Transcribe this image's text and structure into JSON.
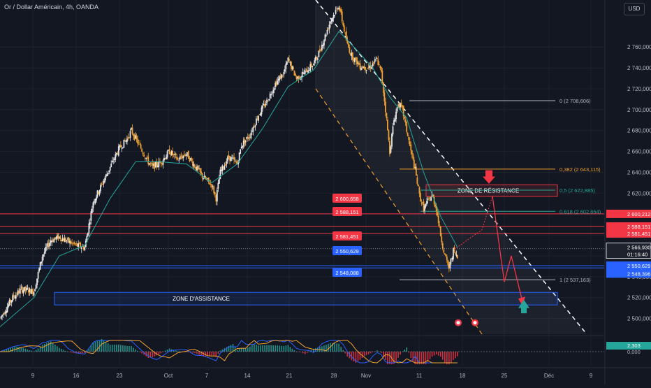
{
  "header": {
    "title": "Or / Dollar Américain, 4h, OANDA",
    "currency_button": "USD"
  },
  "colors": {
    "bg": "#131722",
    "up": "#e6e6e6",
    "down": "#f0a030",
    "ma": "#26a69a",
    "resistance": "#f23645",
    "support": "#2962ff",
    "macd_up": "#26a69a",
    "macd_down": "#f23645"
  },
  "chart_data": {
    "type": "candlestick",
    "symbol": "XAUUSD",
    "timeframe": "4h",
    "ylim": [
      2485,
      2805
    ],
    "y_ticks": [
      "2 760,000",
      "2 740,000",
      "2 720,000",
      "2 700,000",
      "2 680,000",
      "2 660,000",
      "2 640,000",
      "2 620,000",
      "2 600,000",
      "2 580,000",
      "2 560,000",
      "2 540,000",
      "2 520,000",
      "2 500,000"
    ],
    "x_ticks": [
      "9",
      "16",
      "23",
      "Oct",
      "7",
      "14",
      "21",
      "28",
      "Nov",
      "11",
      "18",
      "25",
      "Déc",
      "9"
    ],
    "price_path": [
      [
        0,
        2500
      ],
      [
        3,
        2520
      ],
      [
        5,
        2528
      ],
      [
        8,
        2526
      ],
      [
        10,
        2560
      ],
      [
        12,
        2575
      ],
      [
        14,
        2578
      ],
      [
        16,
        2574
      ],
      [
        18,
        2570
      ],
      [
        20,
        2568
      ],
      [
        22,
        2612
      ],
      [
        24,
        2628
      ],
      [
        26,
        2645
      ],
      [
        28,
        2662
      ],
      [
        30,
        2672
      ],
      [
        31,
        2680
      ],
      [
        33,
        2665
      ],
      [
        35,
        2650
      ],
      [
        36,
        2645
      ],
      [
        38,
        2650
      ],
      [
        40,
        2660
      ],
      [
        42,
        2652
      ],
      [
        44,
        2658
      ],
      [
        46,
        2646
      ],
      [
        48,
        2635
      ],
      [
        50,
        2628
      ],
      [
        51,
        2615
      ],
      [
        52,
        2640
      ],
      [
        54,
        2655
      ],
      [
        56,
        2648
      ],
      [
        57,
        2666
      ],
      [
        59,
        2676
      ],
      [
        61,
        2695
      ],
      [
        63,
        2708
      ],
      [
        65,
        2725
      ],
      [
        67,
        2735
      ],
      [
        68,
        2748
      ],
      [
        70,
        2730
      ],
      [
        72,
        2736
      ],
      [
        74,
        2744
      ],
      [
        75,
        2752
      ],
      [
        76,
        2762
      ],
      [
        78,
        2785
      ],
      [
        80,
        2800
      ],
      [
        82,
        2762
      ],
      [
        83,
        2752
      ],
      [
        85,
        2742
      ],
      [
        87,
        2740
      ],
      [
        89,
        2748
      ],
      [
        90,
        2735
      ],
      [
        91,
        2700
      ],
      [
        92,
        2660
      ],
      [
        93,
        2690
      ],
      [
        94,
        2706
      ],
      [
        95,
        2700
      ],
      [
        96,
        2680
      ],
      [
        97,
        2660
      ],
      [
        98,
        2642
      ],
      [
        99,
        2618
      ],
      [
        100,
        2605
      ],
      [
        101,
        2612
      ],
      [
        102,
        2618
      ],
      [
        103,
        2605
      ],
      [
        104,
        2580
      ],
      [
        105,
        2560
      ],
      [
        106,
        2548
      ],
      [
        107,
        2565
      ],
      [
        108,
        2558
      ]
    ],
    "moving_average_path": [
      [
        0,
        2492
      ],
      [
        8,
        2520
      ],
      [
        14,
        2560
      ],
      [
        20,
        2570
      ],
      [
        26,
        2615
      ],
      [
        32,
        2650
      ],
      [
        38,
        2650
      ],
      [
        44,
        2648
      ],
      [
        50,
        2630
      ],
      [
        56,
        2648
      ],
      [
        62,
        2682
      ],
      [
        68,
        2722
      ],
      [
        74,
        2738
      ],
      [
        80,
        2775
      ],
      [
        84,
        2758
      ],
      [
        88,
        2740
      ],
      [
        92,
        2712
      ],
      [
        96,
        2692
      ],
      [
        100,
        2640
      ],
      [
        104,
        2598
      ],
      [
        108,
        2568
      ]
    ],
    "horizontal_levels": [
      {
        "name": "resistance-line",
        "price": 2600.212,
        "label": "2 600,212",
        "color": "#f23645"
      },
      {
        "name": "resistance-line",
        "price": 2588.151,
        "label": "2 588,151",
        "color": "#f23645"
      },
      {
        "name": "resistance-line",
        "price": 2581.451,
        "label": "2 581,451",
        "color": "#f23645"
      },
      {
        "name": "support-line",
        "price": 2550.629,
        "label": "2 550,629",
        "color": "#2962ff"
      },
      {
        "name": "support-line",
        "price": 2548.396,
        "label": "2 548,396",
        "color": "#2962ff"
      }
    ],
    "mid_tags": [
      {
        "price": 2600.658,
        "label": "2 600,658",
        "color": "#f23645"
      },
      {
        "price": 2588.151,
        "label": "2 588,151",
        "color": "#f23645"
      },
      {
        "price": 2581.451,
        "label": "2 581,451",
        "color": "#f23645"
      },
      {
        "price": 2550.629,
        "label": "2 550,629",
        "color": "#2962ff"
      },
      {
        "price": 2548.088,
        "label": "2 548,088",
        "color": "#2962ff"
      }
    ],
    "fibonacci": [
      {
        "label": "0 (2 708,606)",
        "price": 2708.606,
        "color": "#b2b5be"
      },
      {
        "label": "0,382 (2 643,115)",
        "price": 2643.115,
        "color": "#f0a030"
      },
      {
        "label": "0,5 (2 622,885)",
        "price": 2622.885,
        "color": "#26a69a"
      },
      {
        "label": "0,618 (2 602,654)",
        "price": 2602.654,
        "color": "#26a69a"
      },
      {
        "label": "1 (2 537,163)",
        "price": 2537.163,
        "color": "#b2b5be"
      }
    ],
    "zones": [
      {
        "label": "ZONE DE RÉSISTANCE",
        "top": 2628,
        "bottom": 2617,
        "color": "#f23645"
      },
      {
        "label": "ZONE D'ASSISTANCE",
        "top": 2525,
        "bottom": 2513,
        "color": "#2962ff"
      }
    ],
    "current_price": {
      "label": "2 566,930",
      "countdown": "01:16:40",
      "price": 2566.93
    },
    "macd": {
      "value_label": "2,303",
      "zero_label": "0,000"
    }
  }
}
